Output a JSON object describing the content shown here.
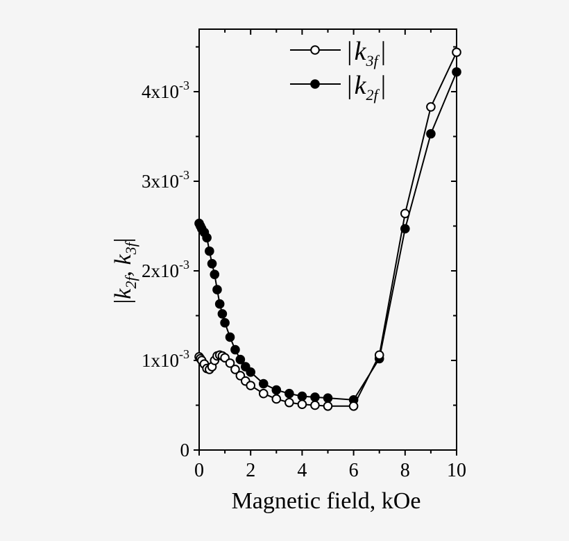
{
  "chart_data": {
    "type": "line",
    "title": "",
    "xlabel": "Magnetic field, kOe",
    "ylabel": "|k2f , k3f|",
    "xlim": [
      0,
      10
    ],
    "ylim": [
      0,
      0.0047
    ],
    "x_ticks": [
      0,
      2,
      4,
      6,
      8,
      10
    ],
    "y_ticks": [
      {
        "value": 0,
        "label": "0"
      },
      {
        "value": 0.001,
        "label": "1x10-3"
      },
      {
        "value": 0.002,
        "label": "2x10-3"
      },
      {
        "value": 0.003,
        "label": "3x10-3"
      },
      {
        "value": 0.004,
        "label": "4x10-3"
      }
    ],
    "grid": false,
    "legend_position": "upper center",
    "series": [
      {
        "name": "|k3f|",
        "marker": "open-circle",
        "x": [
          0.0,
          0.05,
          0.1,
          0.2,
          0.3,
          0.4,
          0.5,
          0.6,
          0.7,
          0.8,
          0.9,
          1.0,
          1.2,
          1.4,
          1.6,
          1.8,
          2.0,
          2.5,
          3.0,
          3.5,
          4.0,
          4.5,
          5.0,
          6.0,
          7.0,
          8.0,
          9.0,
          10.0
        ],
        "values": [
          0.00104,
          0.00102,
          0.001,
          0.00096,
          0.00091,
          0.0009,
          0.00093,
          0.001,
          0.00105,
          0.00106,
          0.00105,
          0.00103,
          0.00097,
          0.0009,
          0.00083,
          0.00077,
          0.00072,
          0.00063,
          0.00057,
          0.00053,
          0.00051,
          0.0005,
          0.00049,
          0.00049,
          0.00106,
          0.00264,
          0.00383,
          0.00444
        ]
      },
      {
        "name": "|k2f|",
        "marker": "filled-circle",
        "x": [
          0.0,
          0.05,
          0.1,
          0.2,
          0.3,
          0.4,
          0.5,
          0.6,
          0.7,
          0.8,
          0.9,
          1.0,
          1.2,
          1.4,
          1.6,
          1.8,
          2.0,
          2.5,
          3.0,
          3.5,
          4.0,
          4.5,
          5.0,
          6.0,
          7.0,
          8.0,
          9.0,
          10.0
        ],
        "values": [
          0.00253,
          0.0025,
          0.00247,
          0.00243,
          0.00237,
          0.00222,
          0.00208,
          0.00196,
          0.00179,
          0.00163,
          0.00152,
          0.00142,
          0.00126,
          0.00112,
          0.00101,
          0.00093,
          0.00087,
          0.00074,
          0.00067,
          0.00063,
          0.0006,
          0.00059,
          0.00058,
          0.00056,
          0.00102,
          0.00247,
          0.00353,
          0.00422
        ]
      }
    ]
  },
  "legend": {
    "items": [
      {
        "k": "k",
        "sub": "3f",
        "marker": "open-circle"
      },
      {
        "k": "k",
        "sub": "2f",
        "marker": "filled-circle"
      }
    ]
  },
  "axes": {
    "xlabel": "Magnetic field, kOe",
    "ylabel_k1": "k",
    "ylabel_sub1": "2f",
    "ylabel_sep": ", ",
    "ylabel_k2": "k",
    "ylabel_sub2": "3f"
  }
}
